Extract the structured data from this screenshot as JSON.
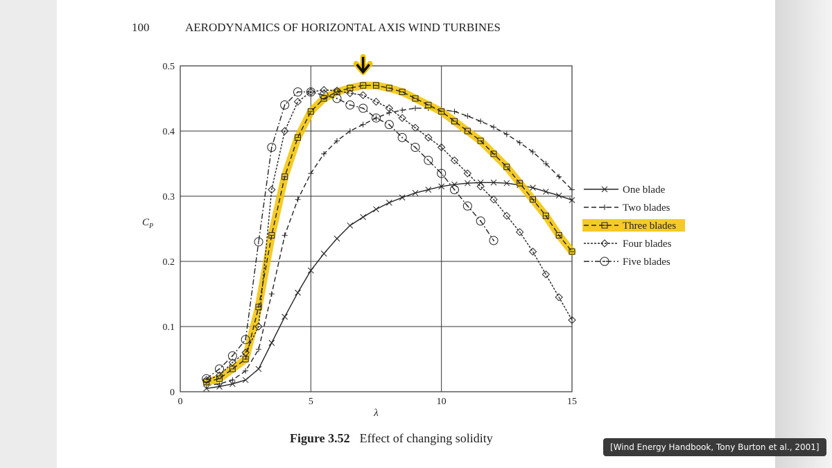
{
  "page": {
    "page_number": "100",
    "running_head": "AERODYNAMICS OF HORIZONTAL AXIS WIND TURBINES",
    "figure_label": "Figure 3.52",
    "figure_caption": "Effect of changing solidity",
    "citation": "[Wind Energy Handbook, Tony Burton et al., 2001]",
    "highlight_color": "#f2c200"
  },
  "chart_data": {
    "type": "line",
    "title": "",
    "xlabel": "λ",
    "ylabel": "C_P",
    "xlim": [
      0,
      15
    ],
    "ylim": [
      0,
      0.5
    ],
    "xticks": [
      "0",
      "5",
      "10",
      "15"
    ],
    "yticks": [
      "0",
      "0.1",
      "0.2",
      "0.3",
      "0.4",
      "0.5"
    ],
    "grid": true,
    "legend_position": "right",
    "highlighted_series": "Three blades",
    "annotation": "arrow pointing to Three blades peak at λ≈7",
    "series": [
      {
        "name": "One blade",
        "marker": "x",
        "dash": "solid",
        "x": [
          1,
          1.5,
          2,
          2.5,
          3,
          3.5,
          4,
          4.5,
          5,
          5.5,
          6,
          6.5,
          7,
          7.5,
          8,
          8.5,
          9,
          9.5,
          10,
          10.5,
          11,
          11.5,
          12,
          12.5,
          13,
          13.5,
          14,
          14.5,
          15
        ],
        "y": [
          0.005,
          0.008,
          0.012,
          0.018,
          0.035,
          0.075,
          0.115,
          0.152,
          0.186,
          0.212,
          0.235,
          0.255,
          0.268,
          0.28,
          0.29,
          0.298,
          0.305,
          0.31,
          0.315,
          0.318,
          0.32,
          0.321,
          0.321,
          0.32,
          0.317,
          0.313,
          0.307,
          0.301,
          0.294
        ]
      },
      {
        "name": "Two blades",
        "marker": "+",
        "dash": "dashed",
        "x": [
          1,
          1.5,
          2,
          2.5,
          3,
          3.5,
          4,
          4.5,
          5,
          5.5,
          6,
          6.5,
          7,
          7.5,
          8,
          8.5,
          9,
          9.5,
          10,
          10.5,
          11,
          11.5,
          12,
          12.5,
          13,
          13.5,
          14,
          14.5,
          15
        ],
        "y": [
          0.01,
          0.012,
          0.018,
          0.032,
          0.065,
          0.15,
          0.24,
          0.295,
          0.335,
          0.365,
          0.385,
          0.4,
          0.41,
          0.42,
          0.428,
          0.432,
          0.435,
          0.435,
          0.433,
          0.43,
          0.423,
          0.415,
          0.406,
          0.395,
          0.382,
          0.368,
          0.35,
          0.33,
          0.31
        ]
      },
      {
        "name": "Three blades",
        "marker": "square",
        "dash": "dashed",
        "x": [
          1,
          1.5,
          2,
          2.5,
          3,
          3.5,
          4,
          4.5,
          5,
          5.5,
          6,
          6.5,
          7,
          7.5,
          8,
          8.5,
          9,
          9.5,
          10,
          10.5,
          11,
          11.5,
          12,
          12.5,
          13,
          13.5,
          14,
          14.5,
          15
        ],
        "y": [
          0.015,
          0.02,
          0.035,
          0.05,
          0.13,
          0.24,
          0.33,
          0.39,
          0.43,
          0.45,
          0.46,
          0.466,
          0.47,
          0.47,
          0.466,
          0.46,
          0.45,
          0.44,
          0.43,
          0.415,
          0.4,
          0.385,
          0.365,
          0.345,
          0.32,
          0.295,
          0.27,
          0.24,
          0.215
        ]
      },
      {
        "name": "Four blades",
        "marker": "diamond",
        "dash": "dotted",
        "x": [
          1,
          1.5,
          2,
          2.5,
          3,
          3.5,
          4,
          4.5,
          5,
          5.5,
          6,
          6.5,
          7,
          7.5,
          8,
          8.5,
          9,
          9.5,
          10,
          10.5,
          11,
          11.5,
          12,
          12.5,
          13,
          13.5,
          14,
          14.5,
          15
        ],
        "y": [
          0.018,
          0.025,
          0.045,
          0.06,
          0.1,
          0.31,
          0.4,
          0.445,
          0.46,
          0.463,
          0.462,
          0.458,
          0.455,
          0.445,
          0.435,
          0.42,
          0.405,
          0.39,
          0.375,
          0.355,
          0.335,
          0.315,
          0.295,
          0.27,
          0.245,
          0.215,
          0.18,
          0.145,
          0.11
        ]
      },
      {
        "name": "Five blades",
        "marker": "circle",
        "dash": "dashdot",
        "x": [
          1,
          1.5,
          2,
          2.5,
          3,
          3.5,
          4,
          4.5,
          5,
          5.5,
          6,
          6.5,
          7,
          7.5,
          8,
          8.5,
          9,
          9.5,
          10,
          10.5,
          11,
          11.5,
          12
        ],
        "y": [
          0.02,
          0.035,
          0.055,
          0.08,
          0.23,
          0.375,
          0.44,
          0.46,
          0.46,
          0.455,
          0.45,
          0.44,
          0.435,
          0.42,
          0.41,
          0.39,
          0.375,
          0.355,
          0.335,
          0.31,
          0.285,
          0.262,
          0.232
        ]
      }
    ]
  }
}
